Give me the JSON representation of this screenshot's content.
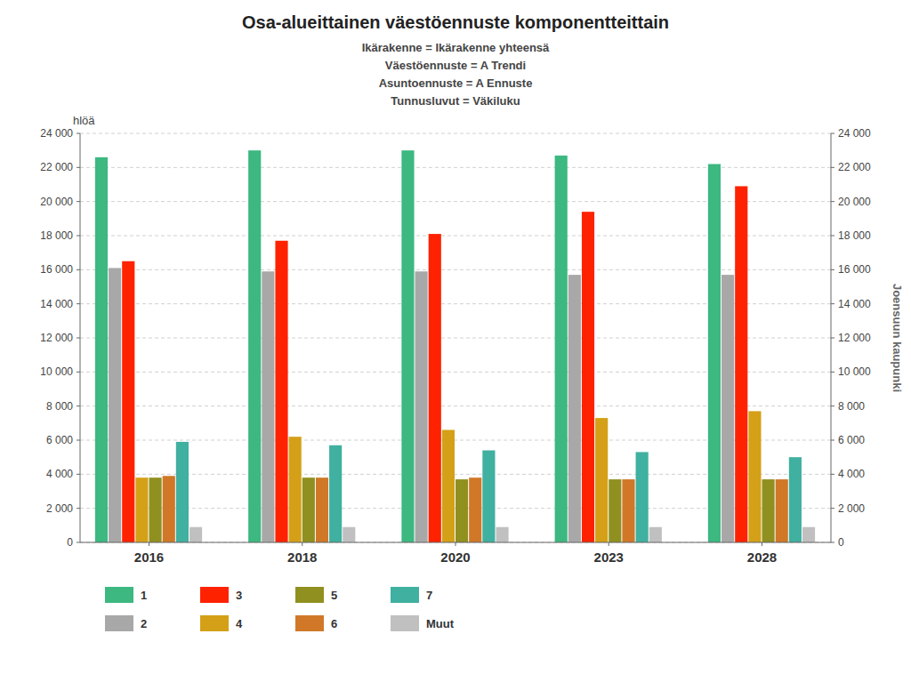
{
  "chart_data": {
    "type": "bar",
    "title": "Osa-alueittainen väestöennuste komponentteittain",
    "subtitle": [
      "Ikärakenne = Ikärakenne yhteensä",
      "Väestöennuste = A Trendi",
      "Asuntoennuste = A Ennuste",
      "Tunnusluvut = Väkiluku"
    ],
    "ylabel": "hlöä",
    "annotations": [
      "Joensuun kaupunki"
    ],
    "categories": [
      "2016",
      "2018",
      "2020",
      "2023",
      "2028"
    ],
    "series": [
      {
        "name": "1",
        "color": "#3cb880",
        "values": [
          22600,
          23000,
          23000,
          22700,
          22200
        ]
      },
      {
        "name": "2",
        "color": "#a8a8a8",
        "values": [
          16100,
          15900,
          15900,
          15700,
          15700
        ]
      },
      {
        "name": "3",
        "color": "#ff2200",
        "values": [
          16500,
          17700,
          18100,
          19400,
          20900
        ]
      },
      {
        "name": "4",
        "color": "#d4a017",
        "values": [
          3800,
          6200,
          6600,
          7300,
          7700
        ]
      },
      {
        "name": "5",
        "color": "#909020",
        "values": [
          3800,
          3800,
          3700,
          3700,
          3700
        ]
      },
      {
        "name": "6",
        "color": "#d07828",
        "values": [
          3900,
          3800,
          3800,
          3700,
          3700
        ]
      },
      {
        "name": "7",
        "color": "#40b0a0",
        "values": [
          5900,
          5700,
          5400,
          5300,
          5000
        ]
      },
      {
        "name": "Muut",
        "color": "#c0c0c0",
        "values": [
          900,
          900,
          900,
          900,
          900
        ]
      }
    ],
    "ylim": [
      0,
      24000
    ],
    "yticks": [
      0,
      {
        "value": 2000,
        "label": "2 000"
      },
      {
        "value": 4000,
        "label": "4 000"
      },
      {
        "value": 6000,
        "label": "6 000"
      },
      {
        "value": 8000,
        "label": "8 000"
      },
      {
        "value": 10000,
        "label": "10 000"
      },
      {
        "value": 12000,
        "label": "12 000"
      },
      {
        "value": 14000,
        "label": "14 000"
      },
      {
        "value": 16000,
        "label": "16 000"
      },
      {
        "value": 18000,
        "label": "18 000"
      },
      {
        "value": 20000,
        "label": "20 000"
      },
      {
        "value": 22000,
        "label": "22 000"
      },
      {
        "value": 24000,
        "label": "24 000"
      }
    ],
    "grid": true,
    "legend": "bottom"
  }
}
